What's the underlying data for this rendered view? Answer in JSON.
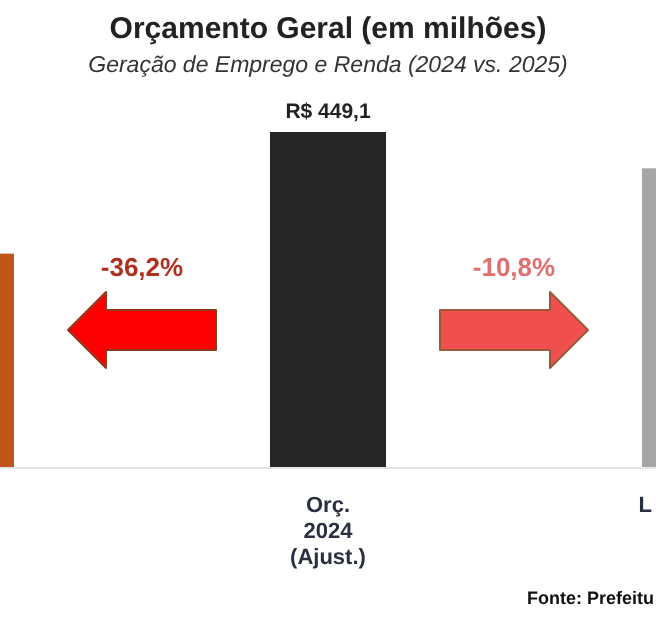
{
  "chart_data": {
    "type": "bar",
    "title": "Orçamento Geral (em milhões)",
    "subtitle": "Geração de Emprego e Renda (2024 vs. 2025)",
    "categories": [
      null,
      "Orç.\n2024\n(Ajust.)",
      "L"
    ],
    "values": [
      286.5,
      449.1,
      400.6
    ],
    "colors": [
      "#c0561a",
      "#262626",
      "#a6a6a6"
    ],
    "value_labels": [
      null,
      "R$ 449,1",
      null
    ],
    "annotations": [
      "-36,2%",
      "-10,8%",
      "Fonte: Prefeitu"
    ]
  }
}
